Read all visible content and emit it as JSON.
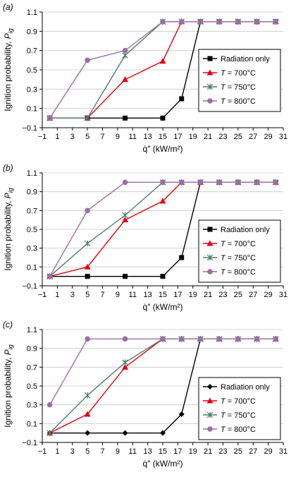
{
  "chart_data": [
    {
      "type": "line",
      "panel_label": "(a)",
      "ylabel": "Ignition probability, P_ig",
      "xlabel": "q̇″ (kW/m²)",
      "xlim": [
        -1,
        31
      ],
      "ylim": [
        -0.1,
        1.1
      ],
      "xticks": [
        "−1",
        "1",
        "3",
        "5",
        "7",
        "9",
        "11",
        "13",
        "15",
        "17",
        "19",
        "21",
        "23",
        "25",
        "27",
        "29",
        "31"
      ],
      "yticks": [
        "−0.1",
        "0.1",
        "0.3",
        "0.5",
        "0.7",
        "0.9",
        "1.1"
      ],
      "legend_position": "right",
      "series": [
        {
          "name": "Radiation only",
          "color": "#000000",
          "marker": "square",
          "x": [
            0,
            5,
            10,
            15,
            17.5,
            20,
            22.5,
            25,
            27.5,
            30
          ],
          "y": [
            0,
            0,
            0,
            0,
            0.2,
            1,
            1,
            1,
            1,
            1
          ]
        },
        {
          "name": "T = 700°C",
          "color": "#e8000b",
          "marker": "triangle",
          "x": [
            0,
            5,
            10,
            15,
            17.5,
            20,
            22.5,
            25,
            27.5,
            30
          ],
          "y": [
            0,
            0,
            0.4,
            0.59,
            1,
            1,
            1,
            1,
            1,
            1
          ]
        },
        {
          "name": "T = 750°C",
          "color": "#4d7f6f",
          "marker": "star",
          "x": [
            0,
            5,
            10,
            15,
            17.5,
            20,
            22.5,
            25,
            27.5,
            30
          ],
          "y": [
            0,
            0,
            0.65,
            1,
            1,
            1,
            1,
            1,
            1,
            1
          ]
        },
        {
          "name": "T = 800°C",
          "color": "#9a6fa4",
          "marker": "circle",
          "x": [
            0,
            5,
            10,
            15,
            17.5,
            20,
            22.5,
            25,
            27.5,
            30
          ],
          "y": [
            0,
            0.6,
            0.7,
            1,
            1,
            1,
            1,
            1,
            1,
            1
          ]
        }
      ]
    },
    {
      "type": "line",
      "panel_label": "(b)",
      "ylabel": "Ignition probability, P_ig",
      "xlabel": "q̇″ (kW/m²)",
      "xlim": [
        -1,
        31
      ],
      "ylim": [
        -0.1,
        1.1
      ],
      "xticks": [
        "−1",
        "1",
        "3",
        "5",
        "7",
        "9",
        "11",
        "13",
        "15",
        "17",
        "19",
        "21",
        "23",
        "25",
        "27",
        "29",
        "31"
      ],
      "yticks": [
        "−0.1",
        "0.1",
        "0.3",
        "0.5",
        "0.7",
        "0.9",
        "1.1"
      ],
      "legend_position": "right",
      "series": [
        {
          "name": "Radiation only",
          "color": "#000000",
          "marker": "square",
          "x": [
            0,
            5,
            10,
            15,
            17.5,
            20,
            22.5,
            25,
            27.5,
            30
          ],
          "y": [
            0,
            0,
            0,
            0,
            0.2,
            1,
            1,
            1,
            1,
            1
          ]
        },
        {
          "name": "T = 700°C",
          "color": "#e8000b",
          "marker": "triangle",
          "x": [
            0,
            5,
            10,
            15,
            17.5,
            20,
            22.5,
            25,
            27.5,
            30
          ],
          "y": [
            0,
            0.1,
            0.6,
            0.8,
            1,
            1,
            1,
            1,
            1,
            1
          ]
        },
        {
          "name": "T = 750°C",
          "color": "#4d7f6f",
          "marker": "star",
          "x": [
            0,
            5,
            10,
            15,
            17.5,
            20,
            22.5,
            25,
            27.5,
            30
          ],
          "y": [
            0,
            0.35,
            0.65,
            1,
            1,
            1,
            1,
            1,
            1,
            1
          ]
        },
        {
          "name": "T = 800°C",
          "color": "#9a6fa4",
          "marker": "circle",
          "x": [
            0,
            5,
            10,
            15,
            17.5,
            20,
            22.5,
            25,
            27.5,
            30
          ],
          "y": [
            0,
            0.7,
            1,
            1,
            1,
            1,
            1,
            1,
            1,
            1
          ]
        }
      ]
    },
    {
      "type": "line",
      "panel_label": "(c)",
      "ylabel": "Ignition probability, P_ig",
      "xlabel": "q̇″ (kW/m²)",
      "xlim": [
        -1,
        31
      ],
      "ylim": [
        -0.1,
        1.1
      ],
      "xticks": [
        "−1",
        "1",
        "3",
        "5",
        "7",
        "9",
        "11",
        "13",
        "15",
        "17",
        "19",
        "21",
        "23",
        "25",
        "27",
        "29",
        "31"
      ],
      "yticks": [
        "−0.1",
        "0.1",
        "0.3",
        "0.5",
        "0.7",
        "0.9",
        "1.1"
      ],
      "legend_position": "right",
      "series": [
        {
          "name": "Radiation only",
          "color": "#000000",
          "marker": "diamond",
          "x": [
            0,
            5,
            10,
            15,
            17.5,
            20,
            22.5,
            25,
            27.5,
            30
          ],
          "y": [
            0,
            0,
            0,
            0,
            0.2,
            1,
            1,
            1,
            1,
            1
          ]
        },
        {
          "name": "T = 700°C",
          "color": "#e8000b",
          "marker": "triangle",
          "x": [
            0,
            5,
            10,
            15,
            17.5,
            20,
            22.5,
            25,
            27.5,
            30
          ],
          "y": [
            0,
            0.2,
            0.7,
            1,
            1,
            1,
            1,
            1,
            1,
            1
          ]
        },
        {
          "name": "T = 750°C",
          "color": "#4d7f6f",
          "marker": "star",
          "x": [
            0,
            5,
            10,
            15,
            17.5,
            20,
            22.5,
            25,
            27.5,
            30
          ],
          "y": [
            0,
            0.4,
            0.75,
            1,
            1,
            1,
            1,
            1,
            1,
            1
          ]
        },
        {
          "name": "T = 800°C",
          "color": "#9a6fa4",
          "marker": "circle",
          "x": [
            0,
            5,
            10,
            15,
            17.5,
            20,
            22.5,
            25,
            27.5,
            30
          ],
          "y": [
            0.3,
            1,
            1,
            1,
            1,
            1,
            1,
            1,
            1,
            1
          ]
        }
      ]
    }
  ]
}
